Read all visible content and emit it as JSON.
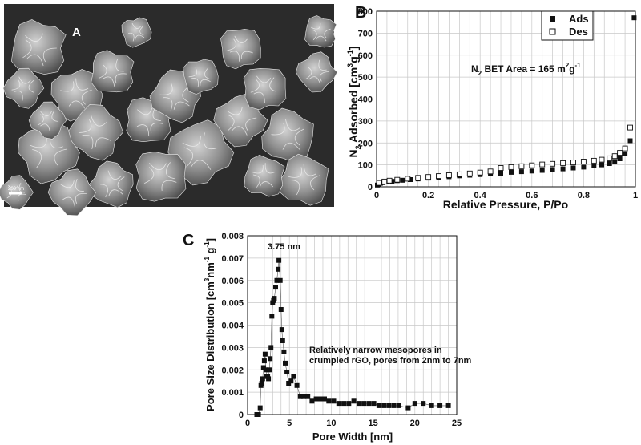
{
  "panels": {
    "a_label": "A",
    "b_label": "B",
    "c_label": "C",
    "a_scale_bar": "200 nm"
  },
  "chart_data": [
    {
      "id": "B",
      "type": "scatter",
      "xlabel": "Relative Pressure, P/Po",
      "ylabel": "N2 Adsorbed [cm3g-1]",
      "xlim": [
        0,
        1
      ],
      "ylim": [
        0,
        800
      ],
      "xticks": [
        "0",
        "0.2",
        "0.4",
        "0.6",
        "0.8",
        "1"
      ],
      "yticks": [
        "0",
        "100",
        "200",
        "300",
        "400",
        "500",
        "600",
        "700",
        "800"
      ],
      "grid": true,
      "legend_position": "top-right",
      "annotation": "N2 BET Area = 165 m2g-1",
      "series": [
        {
          "name": "Ads",
          "marker": "filled-square",
          "x": [
            0.003,
            0.008,
            0.015,
            0.025,
            0.04,
            0.06,
            0.08,
            0.1,
            0.13,
            0.16,
            0.2,
            0.24,
            0.28,
            0.32,
            0.36,
            0.4,
            0.44,
            0.48,
            0.52,
            0.56,
            0.6,
            0.64,
            0.68,
            0.72,
            0.76,
            0.8,
            0.84,
            0.87,
            0.9,
            0.92,
            0.94,
            0.96,
            0.98,
            0.995
          ],
          "y": [
            8,
            12,
            16,
            19,
            22,
            25,
            28,
            30,
            33,
            36,
            40,
            43,
            46,
            50,
            53,
            56,
            59,
            62,
            66,
            69,
            72,
            75,
            79,
            82,
            86,
            90,
            95,
            100,
            106,
            115,
            128,
            150,
            210,
            770
          ]
        },
        {
          "name": "Des",
          "marker": "open-square",
          "x": [
            0.01,
            0.03,
            0.05,
            0.08,
            0.12,
            0.16,
            0.2,
            0.24,
            0.28,
            0.32,
            0.36,
            0.4,
            0.44,
            0.48,
            0.52,
            0.56,
            0.6,
            0.64,
            0.68,
            0.72,
            0.76,
            0.8,
            0.84,
            0.87,
            0.9,
            0.92,
            0.94,
            0.96,
            0.98
          ],
          "y": [
            18,
            24,
            28,
            32,
            37,
            41,
            45,
            49,
            53,
            57,
            61,
            65,
            70,
            86,
            90,
            94,
            98,
            102,
            105,
            108,
            111,
            115,
            119,
            124,
            130,
            140,
            155,
            175,
            270
          ]
        }
      ]
    },
    {
      "id": "C",
      "type": "line",
      "xlabel": "Pore Width [nm]",
      "ylabel": "Pore Size Distribution [cm3nm-1g-1]",
      "xlim": [
        0,
        25
      ],
      "ylim": [
        0,
        0.008
      ],
      "xticks": [
        "0",
        "5",
        "10",
        "15",
        "20",
        "25"
      ],
      "yticks": [
        "0",
        "0.001",
        "0.002",
        "0.003",
        "0.004",
        "0.005",
        "0.006",
        "0.007",
        "0.008"
      ],
      "grid": true,
      "peak_annotation": "3.75 nm",
      "annotation_line1": "Relatively narrow mesopores in",
      "annotation_line2": "crumpled rGO, pores from 2nm to 7nm",
      "series": [
        {
          "name": "",
          "marker": "filled-square",
          "x": [
            1.1,
            1.3,
            1.5,
            1.6,
            1.7,
            1.8,
            1.9,
            2.0,
            2.1,
            2.2,
            2.3,
            2.4,
            2.5,
            2.6,
            2.7,
            2.8,
            2.9,
            3.0,
            3.1,
            3.2,
            3.35,
            3.5,
            3.65,
            3.75,
            3.9,
            4.0,
            4.1,
            4.2,
            4.35,
            4.5,
            4.7,
            4.9,
            5.2,
            5.5,
            5.9,
            6.3,
            6.7,
            7.2,
            7.7,
            8.2,
            8.7,
            9.2,
            9.7,
            10.3,
            10.9,
            11.5,
            12.1,
            12.7,
            13.3,
            13.9,
            14.5,
            15.1,
            15.7,
            16.3,
            16.9,
            17.5,
            18.1,
            19.2,
            20.0,
            21.0,
            22.0,
            23.0,
            24.0
          ],
          "y": [
            0.0,
            0.0,
            0.0003,
            0.0013,
            0.0014,
            0.0016,
            0.0021,
            0.0024,
            0.0027,
            0.002,
            0.0017,
            0.0017,
            0.0016,
            0.002,
            0.0025,
            0.003,
            0.0044,
            0.005,
            0.0051,
            0.0052,
            0.0057,
            0.006,
            0.0065,
            0.0069,
            0.006,
            0.0047,
            0.0038,
            0.0033,
            0.0028,
            0.0023,
            0.0019,
            0.0014,
            0.0015,
            0.0017,
            0.0013,
            0.0008,
            0.0008,
            0.0008,
            0.0006,
            0.0007,
            0.0007,
            0.0007,
            0.0006,
            0.0006,
            0.0005,
            0.0005,
            0.0005,
            0.0006,
            0.0005,
            0.0005,
            0.0005,
            0.0005,
            0.0004,
            0.0004,
            0.0004,
            0.0004,
            0.0004,
            0.0003,
            0.0005,
            0.0005,
            0.0004,
            0.0004,
            0.0004
          ]
        }
      ]
    }
  ]
}
